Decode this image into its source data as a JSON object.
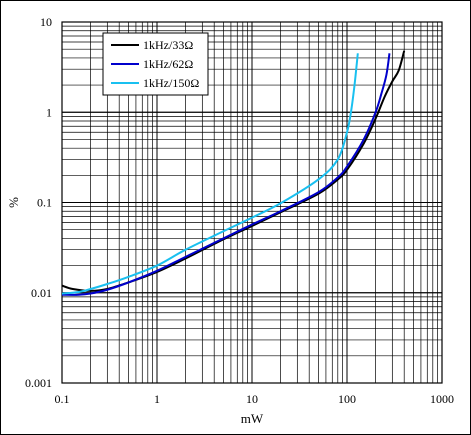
{
  "chart_data": {
    "type": "line",
    "xscale": "log",
    "yscale": "log",
    "xlim": [
      0.1,
      1000
    ],
    "ylim": [
      0.001,
      10
    ],
    "xlabel": "mW",
    "ylabel": "%",
    "grid": true,
    "legend_position": "top-left",
    "x_ticks": [
      "0.1",
      "1",
      "10",
      "100",
      "1000"
    ],
    "y_ticks": [
      "0.001",
      "0.01",
      "0.1",
      "1",
      "10"
    ],
    "series": [
      {
        "name": "1kHz/33Ω",
        "color": "#000000",
        "x": [
          0.1,
          0.13,
          0.2,
          0.3,
          0.5,
          1,
          2,
          5,
          10,
          20,
          50,
          80,
          100,
          150,
          200,
          250,
          300,
          350,
          400
        ],
        "y": [
          0.012,
          0.011,
          0.0105,
          0.011,
          0.013,
          0.017,
          0.024,
          0.039,
          0.055,
          0.078,
          0.125,
          0.18,
          0.23,
          0.45,
          0.85,
          1.5,
          2.2,
          2.9,
          4.8
        ]
      },
      {
        "name": "1kHz/62Ω",
        "color": "#0000cc",
        "x": [
          0.1,
          0.15,
          0.2,
          0.3,
          0.5,
          1,
          2,
          5,
          10,
          20,
          50,
          80,
          100,
          150,
          200,
          230,
          260,
          280
        ],
        "y": [
          0.0095,
          0.0095,
          0.0098,
          0.0108,
          0.013,
          0.0175,
          0.025,
          0.04,
          0.057,
          0.08,
          0.13,
          0.19,
          0.25,
          0.5,
          1.0,
          1.6,
          2.6,
          4.5
        ]
      },
      {
        "name": "1kHz/150Ω",
        "color": "#19c0f0",
        "x": [
          0.1,
          0.15,
          0.2,
          0.3,
          0.5,
          1,
          2,
          5,
          10,
          20,
          50,
          80,
          100,
          110,
          120,
          130
        ],
        "y": [
          0.0098,
          0.0102,
          0.011,
          0.0125,
          0.015,
          0.02,
          0.03,
          0.048,
          0.068,
          0.098,
          0.18,
          0.3,
          0.6,
          1.0,
          2.0,
          4.5
        ]
      }
    ]
  }
}
